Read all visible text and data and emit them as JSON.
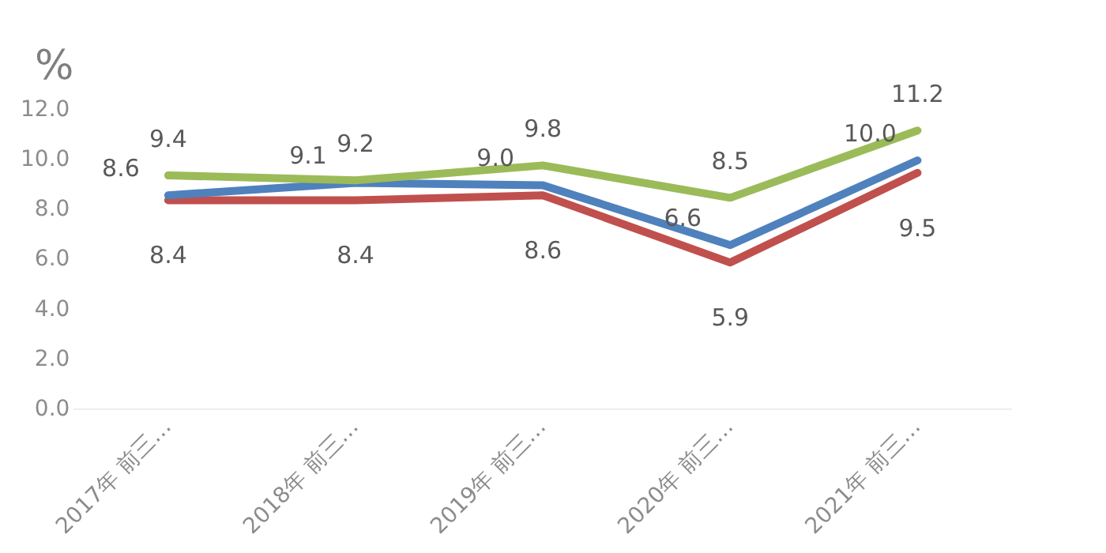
{
  "chart_data": {
    "type": "line",
    "ylabel": "%",
    "categories": [
      "2017年 前三…",
      "2018年 前三…",
      "2019年 前三…",
      "2020年 前三…",
      "2021年 前三…"
    ],
    "series": [
      {
        "color": "#9bbb59",
        "values": [
          9.4,
          9.2,
          9.8,
          8.5,
          11.2
        ],
        "value_labels": [
          "9.4",
          "9.2",
          "9.8",
          "8.5",
          "11.2"
        ]
      },
      {
        "color": "#4f81bd",
        "values": [
          8.6,
          9.1,
          9.0,
          6.6,
          10.0
        ],
        "value_labels": [
          "8.6",
          "9.1",
          "9.0",
          "6.6",
          "10.0"
        ]
      },
      {
        "color": "#c0504d",
        "values": [
          8.4,
          8.4,
          8.6,
          5.9,
          9.5
        ],
        "value_labels": [
          "8.4",
          "8.4",
          "8.6",
          "5.9",
          "9.5"
        ]
      }
    ],
    "ylim": [
      0,
      12
    ],
    "yticks": [
      {
        "value": 0,
        "label": "0.0"
      },
      {
        "value": 2,
        "label": "2.0"
      },
      {
        "value": 4,
        "label": "4.0"
      },
      {
        "value": 6,
        "label": "6.0"
      },
      {
        "value": 8,
        "label": "8.0"
      },
      {
        "value": 10,
        "label": "10.0"
      },
      {
        "value": 12,
        "label": "12.0"
      }
    ],
    "grid": false,
    "legend": false,
    "marker": "none",
    "line_style": "solid"
  }
}
